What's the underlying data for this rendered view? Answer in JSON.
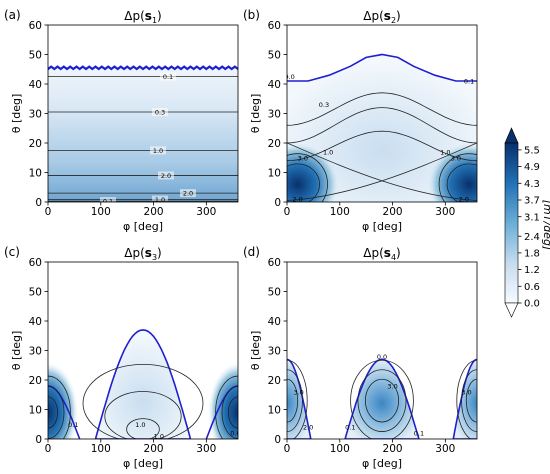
{
  "chart_data": [
    {
      "type": "heatmap",
      "panel_label": "(a)",
      "title": "Δp(s1)",
      "title_main": "Δp(",
      "title_bold": "s",
      "title_sub": "1",
      "title_close": ")",
      "xlabel": "φ [deg]",
      "ylabel": "θ [deg]",
      "xlim": [
        0,
        360
      ],
      "ylim": [
        0,
        60
      ],
      "xticks": [
        "0",
        "100",
        "200",
        "300"
      ],
      "yticks": [
        "0",
        "10",
        "20",
        "30",
        "40",
        "50",
        "60"
      ],
      "contours": [
        {
          "level": "0.1",
          "theta": 42.5
        },
        {
          "level": "0.3",
          "theta": 30.5
        },
        {
          "level": "1.0",
          "theta": 17.5
        },
        {
          "level": "2.0",
          "theta": 9.0
        },
        {
          "level": "2.0",
          "theta": 3.0
        },
        {
          "level": "1.0",
          "theta": 0.8
        },
        {
          "level": "0.1",
          "theta": 0.3
        }
      ],
      "boundary_theta": 45.5
    },
    {
      "type": "heatmap",
      "panel_label": "(b)",
      "title": "Δp(s2)",
      "title_main": "Δp(",
      "title_bold": "s",
      "title_sub": "2",
      "title_close": ")",
      "xlabel": "φ [deg]",
      "ylabel": "θ [deg]",
      "xlim": [
        0,
        360
      ],
      "ylim": [
        0,
        60
      ],
      "xticks": [
        "0",
        "100",
        "200",
        "300"
      ],
      "yticks": [
        "0",
        "10",
        "20",
        "30",
        "40",
        "50",
        "60"
      ],
      "contour_labels": [
        "0.0",
        "0.1",
        "0.3",
        "1.0",
        "1.0",
        "3.0",
        "3.0",
        "2.0",
        "2.0"
      ],
      "boundary_peak_theta": 50,
      "boundary_edge_theta": 41
    },
    {
      "type": "heatmap",
      "panel_label": "(c)",
      "title": "Δp(s3)",
      "title_main": "Δp(",
      "title_bold": "s",
      "title_sub": "3",
      "title_close": ")",
      "xlabel": "φ [deg]",
      "ylabel": "θ [deg]",
      "xlim": [
        0,
        360
      ],
      "ylim": [
        0,
        60
      ],
      "xticks": [
        "0",
        "100",
        "200",
        "300"
      ],
      "yticks": [
        "0",
        "10",
        "20",
        "30",
        "40",
        "50",
        "60"
      ],
      "contour_labels": [
        "0.1",
        "1.0",
        "1.0",
        "0.0"
      ],
      "dome_peak_theta": 37,
      "corner_peak_theta": 18
    },
    {
      "type": "heatmap",
      "panel_label": "(d)",
      "title": "Δp(s4)",
      "title_main": "Δp(",
      "title_bold": "s",
      "title_sub": "4",
      "title_close": ")",
      "xlabel": "φ [deg]",
      "ylabel": "θ [deg]",
      "xlim": [
        0,
        360
      ],
      "ylim": [
        0,
        60
      ],
      "xticks": [
        "0",
        "100",
        "200",
        "300"
      ],
      "yticks": [
        "0",
        "10",
        "20",
        "30",
        "40",
        "50",
        "60"
      ],
      "contour_labels": [
        "0.0",
        "3.0",
        "3.0",
        "2.0",
        "3.0",
        "0.1",
        "0.1"
      ],
      "dome_peak_theta": 27
    }
  ],
  "colorbar": {
    "label": "[mT/deg]",
    "ticks": [
      "0.0",
      "0.6",
      "1.2",
      "1.8",
      "2.4",
      "3.1",
      "3.7",
      "4.3",
      "4.9",
      "5.5"
    ],
    "max": 5.5
  }
}
